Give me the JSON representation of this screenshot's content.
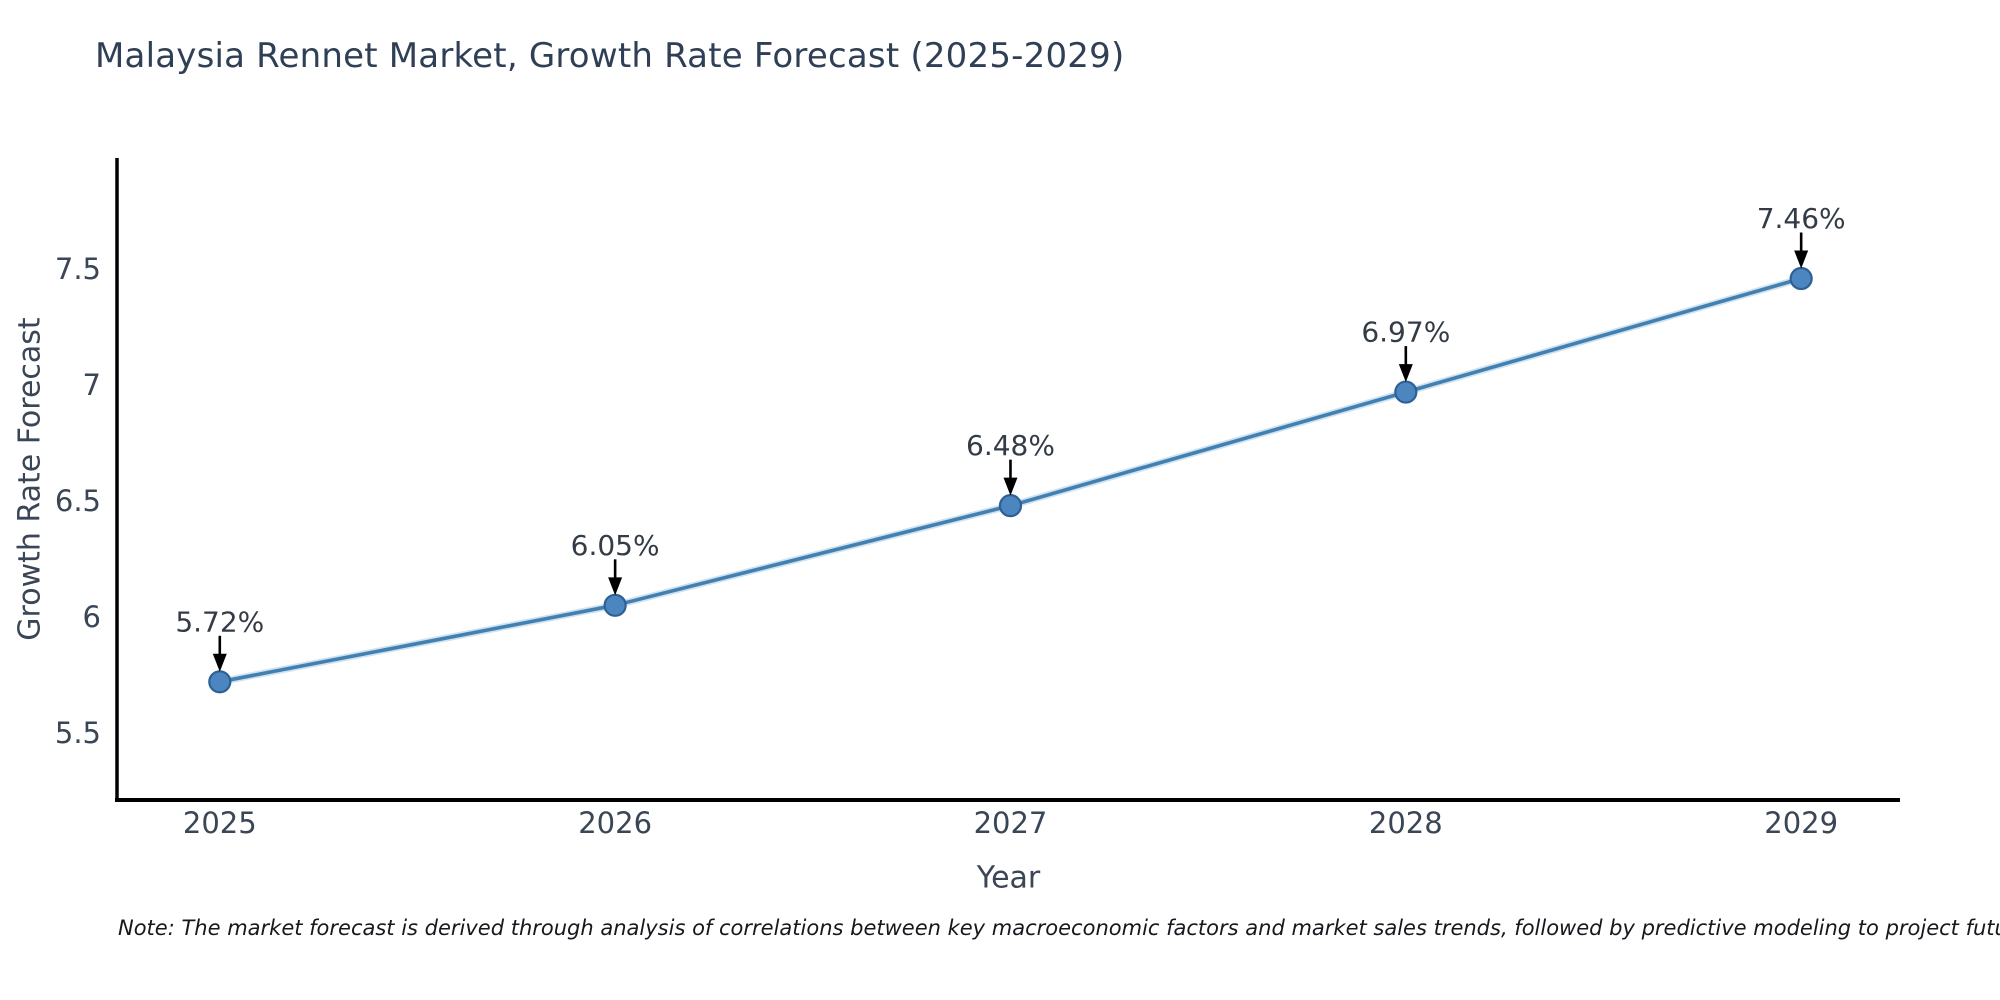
{
  "title": "Malaysia Rennet Market, Growth Rate Forecast (2025-2029)",
  "note": "Note: The market forecast is derived through analysis of correlations between key macroeconomic factors and market sales trends, followed by predictive modeling to project future sales",
  "chart_data": {
    "type": "line",
    "title": "Malaysia Rennet Market, Growth Rate Forecast (2025-2029)",
    "x": [
      2025,
      2026,
      2027,
      2028,
      2029
    ],
    "values": [
      5.72,
      6.05,
      6.48,
      6.97,
      7.46
    ],
    "labels": [
      "5.72%",
      "6.05%",
      "6.48%",
      "6.97%",
      "7.46%"
    ],
    "xlabel": "Year",
    "ylabel": "Growth Rate Forecast",
    "xticks": [
      "2025",
      "2026",
      "2027",
      "2028",
      "2029"
    ],
    "yticks": [
      5.5,
      6,
      6.5,
      7,
      7.5
    ],
    "xlim": [
      2024.74,
      2029.25
    ],
    "ylim": [
      5.21,
      7.98
    ],
    "grid": false,
    "legend": "none",
    "annotation_style": "black-arrow-down-to-marker",
    "colors": {
      "line": "#4380b2",
      "line_halo": "#9ec5e2",
      "marker": "#4c86c0",
      "marker_edge": "#2f5f94",
      "spine": "#000000",
      "annotation_arrow": "#000000",
      "annotation_text": "#333b46",
      "title_text": "#2f3f55",
      "tick_text": "#3a4656",
      "axis_title_text": "#3a4656",
      "note_text": "#16181d",
      "background": "#ffffff"
    }
  }
}
